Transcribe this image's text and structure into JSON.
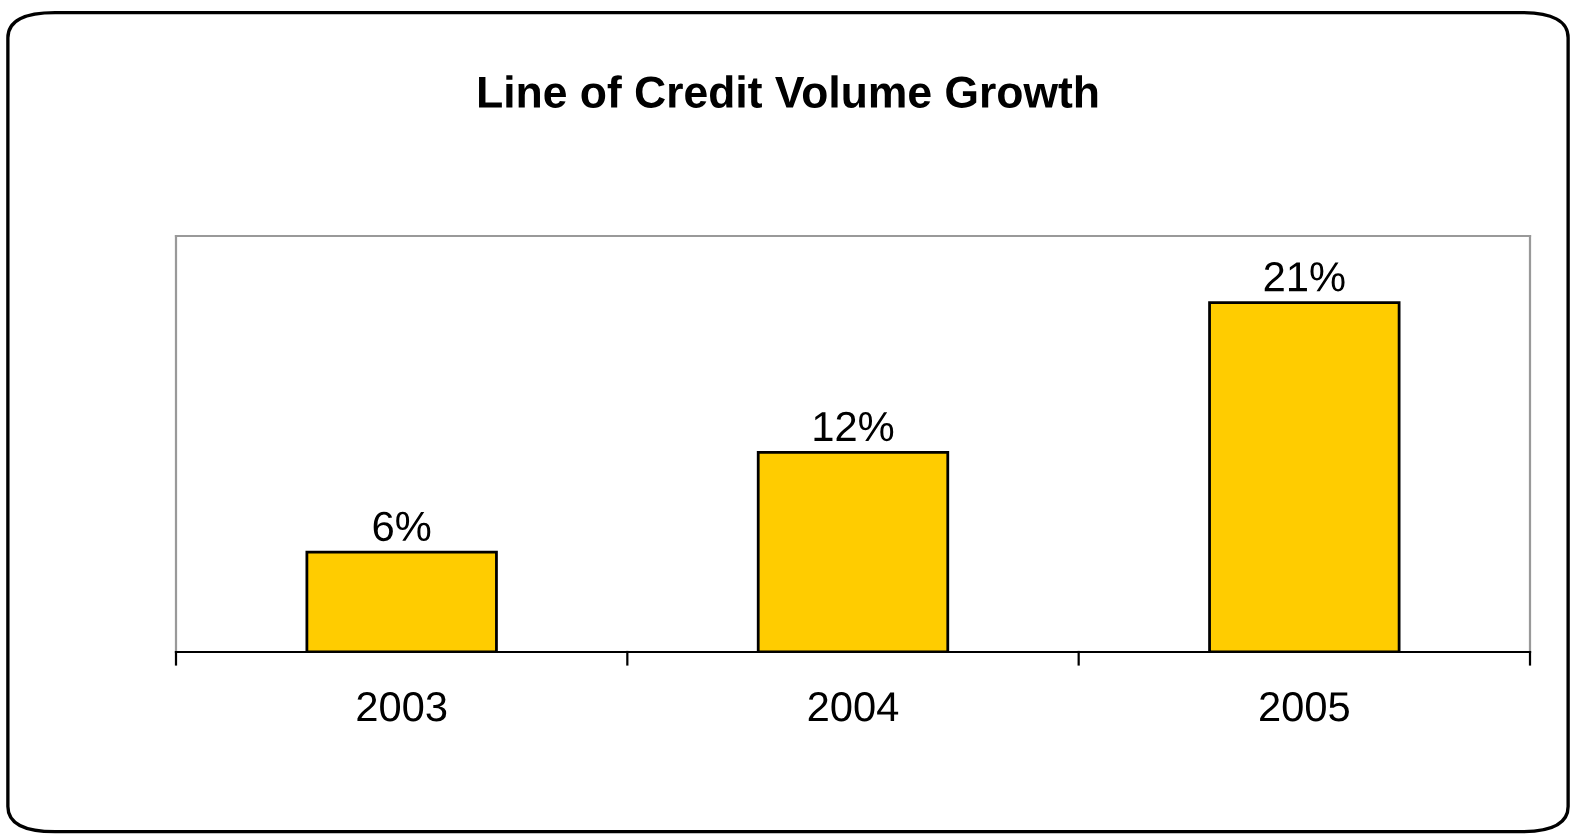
{
  "chart_data": {
    "type": "bar",
    "title": "Line of Credit Volume Growth",
    "categories": [
      "2003",
      "2004",
      "2005"
    ],
    "values": [
      6,
      12,
      21
    ],
    "value_labels": [
      "6%",
      "12%",
      "21%"
    ],
    "color": "#ffcc00",
    "ylim": [
      0,
      25
    ],
    "tick_labels": "x",
    "grid": false,
    "legend": false
  }
}
